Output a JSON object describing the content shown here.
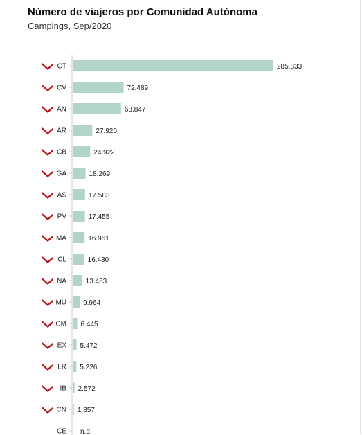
{
  "chart_data": {
    "type": "bar",
    "orientation": "horizontal",
    "title": "Número de viajeros por Comunidad Autónoma",
    "subtitle": "Campings, Sep/2020",
    "bar_color": "#b3d5c8",
    "marker_color": "#b5121b",
    "marker_icon": "chevron-down-icon",
    "grid": false,
    "categories": [
      "CT",
      "CV",
      "AN",
      "AR",
      "CB",
      "GA",
      "AS",
      "PV",
      "MA",
      "CL",
      "NA",
      "MU",
      "CM",
      "EX",
      "LR",
      "IB",
      "CN",
      "CE"
    ],
    "values": [
      285833,
      72489,
      68847,
      27920,
      24922,
      18269,
      17583,
      17455,
      16961,
      16430,
      13463,
      9964,
      6445,
      5472,
      5226,
      2572,
      1857,
      null
    ],
    "value_labels": [
      "285.833",
      "72.489",
      "68.847",
      "27.920",
      "24.922",
      "18.269",
      "17.583",
      "17.455",
      "16.961",
      "16.430",
      "13.463",
      "9.964",
      "6.445",
      "5.472",
      "5.226",
      "2.572",
      "1.857",
      "n.d."
    ],
    "trend_down": [
      true,
      true,
      true,
      true,
      true,
      true,
      true,
      true,
      true,
      true,
      true,
      true,
      true,
      true,
      true,
      true,
      true,
      false
    ],
    "xlim": [
      0,
      285833
    ]
  }
}
